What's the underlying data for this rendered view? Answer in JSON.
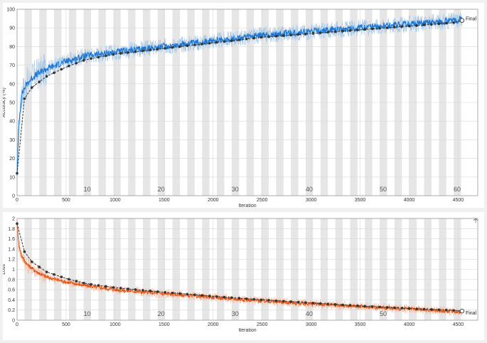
{
  "chart_data": [
    {
      "type": "line",
      "ylabel": "Accuracy (%)",
      "xlabel": "Iteration",
      "xlim": [
        0,
        4700
      ],
      "ylim": [
        0,
        100
      ],
      "xticks": [
        0,
        500,
        1000,
        1500,
        2000,
        2500,
        3000,
        3500,
        4000,
        4500
      ],
      "yticks": [
        0,
        10,
        20,
        30,
        40,
        50,
        60,
        70,
        80,
        90,
        100
      ],
      "epoch_labels": [
        "10",
        "20",
        "30",
        "40",
        "50",
        "60"
      ],
      "epoch_label_positions": [
        715,
        1470,
        2225,
        2980,
        3735,
        4490
      ],
      "epochs": 61,
      "iterations_per_epoch": 75.5,
      "grid": true,
      "final_label": "Final",
      "series": [
        {
          "role": "training-raw",
          "color": "#a9c9e6",
          "x": [
            0,
            20,
            50,
            100,
            150,
            200,
            300,
            400,
            500,
            700,
            1000,
            1500,
            2000,
            2500,
            3000,
            3500,
            4000,
            4500,
            4540
          ],
          "y": [
            12,
            40,
            55,
            60,
            63,
            65,
            68,
            70,
            72,
            75,
            77,
            80,
            83,
            86,
            88,
            90,
            92,
            94,
            95
          ]
        },
        {
          "role": "training-smoothed",
          "color": "#1f77d2",
          "x": [
            0,
            20,
            50,
            100,
            150,
            200,
            300,
            400,
            500,
            700,
            1000,
            1500,
            2000,
            2500,
            3000,
            3500,
            4000,
            4500,
            4540
          ],
          "y": [
            12,
            40,
            55,
            60,
            63,
            65,
            68,
            70,
            72,
            75,
            77,
            80,
            83,
            86,
            88,
            90,
            92,
            94,
            95
          ]
        },
        {
          "role": "validation",
          "color": "#333333",
          "x": [
            0,
            75,
            150,
            300,
            500,
            700,
            1000,
            1500,
            2000,
            2500,
            3000,
            3500,
            4000,
            4500,
            4540
          ],
          "y": [
            12,
            52,
            58,
            64,
            69,
            73,
            76,
            79,
            82,
            85,
            87,
            89,
            91,
            93,
            94
          ]
        }
      ]
    },
    {
      "type": "line",
      "ylabel": "Loss",
      "xlabel": "Iteration",
      "xlim": [
        0,
        4700
      ],
      "ylim": [
        0,
        2
      ],
      "xticks": [
        0,
        500,
        1000,
        1500,
        2000,
        2500,
        3000,
        3500,
        4000,
        4500
      ],
      "yticks": [
        0,
        0.2,
        0.4,
        0.6,
        0.8,
        1,
        1.2,
        1.4,
        1.6,
        1.8,
        2
      ],
      "epoch_labels": [
        "10",
        "20",
        "30",
        "40",
        "50"
      ],
      "epoch_label_positions": [
        715,
        1470,
        2225,
        2980,
        3735
      ],
      "epochs": 61,
      "iterations_per_epoch": 75.5,
      "grid": true,
      "final_label": "Final",
      "series": [
        {
          "role": "training-raw",
          "color": "#f5c4ae",
          "x": [
            0,
            20,
            50,
            100,
            200,
            300,
            500,
            700,
            1000,
            1500,
            2000,
            2500,
            3000,
            3500,
            4000,
            4500,
            4540
          ],
          "y": [
            1.9,
            1.45,
            1.25,
            1.1,
            0.95,
            0.85,
            0.75,
            0.68,
            0.6,
            0.52,
            0.45,
            0.38,
            0.32,
            0.27,
            0.22,
            0.17,
            0.16
          ]
        },
        {
          "role": "training-smoothed",
          "color": "#e05a1e",
          "x": [
            0,
            20,
            50,
            100,
            200,
            300,
            500,
            700,
            1000,
            1500,
            2000,
            2500,
            3000,
            3500,
            4000,
            4500,
            4540
          ],
          "y": [
            1.9,
            1.45,
            1.25,
            1.1,
            0.95,
            0.85,
            0.75,
            0.68,
            0.6,
            0.52,
            0.45,
            0.38,
            0.32,
            0.27,
            0.22,
            0.17,
            0.16
          ]
        },
        {
          "role": "validation",
          "color": "#333333",
          "x": [
            0,
            75,
            150,
            300,
            500,
            700,
            1000,
            1500,
            2000,
            2500,
            3000,
            3500,
            4000,
            4500,
            4540
          ],
          "y": [
            1.9,
            1.35,
            1.15,
            0.95,
            0.82,
            0.72,
            0.64,
            0.55,
            0.47,
            0.4,
            0.34,
            0.28,
            0.23,
            0.19,
            0.18
          ]
        }
      ]
    }
  ]
}
